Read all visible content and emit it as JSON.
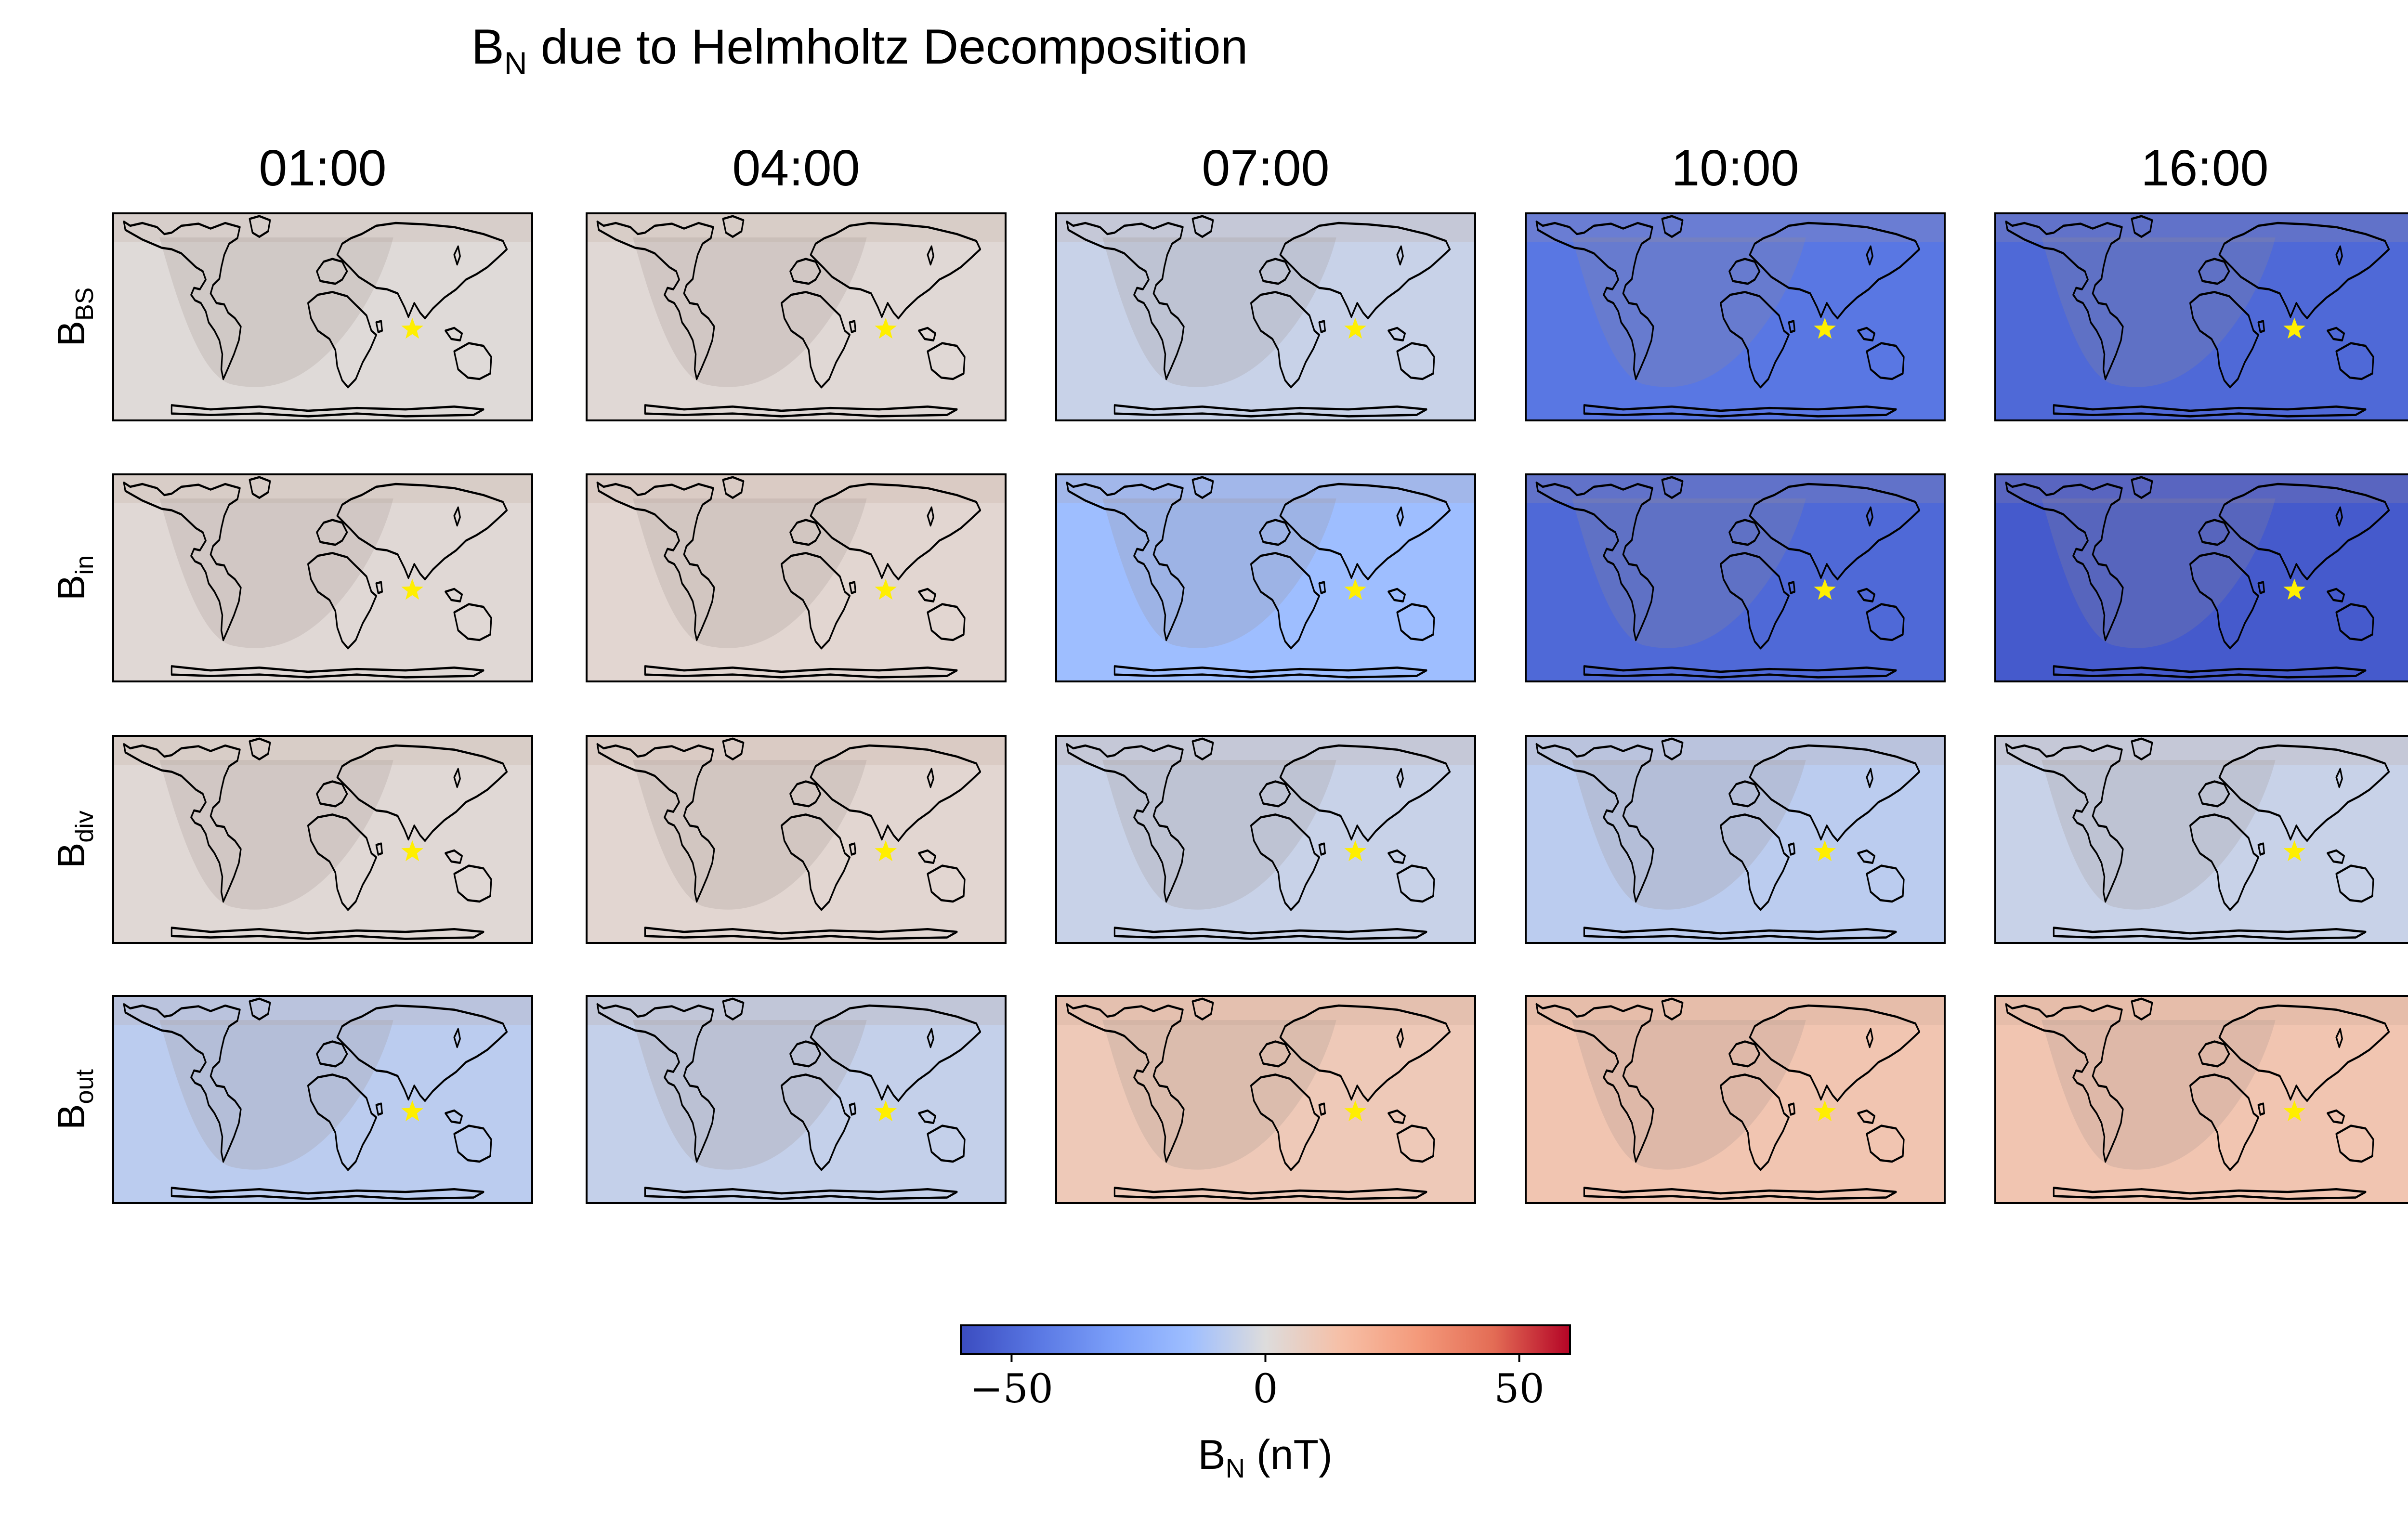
{
  "chart_data": {
    "type": "heatmap",
    "title": "B",
    "title_sub": "N",
    "title_rest": " due to Helmholtz Decomposition",
    "columns": [
      "01:00",
      "04:00",
      "07:00",
      "10:00",
      "16:00"
    ],
    "rows": [
      {
        "label": "B",
        "sub": "BS"
      },
      {
        "label": "B",
        "sub": "in"
      },
      {
        "label": "B",
        "sub": "div"
      },
      {
        "label": "B",
        "sub": "out"
      }
    ],
    "approx_mean_values_nT": [
      [
        1,
        2,
        -5,
        -45,
        -50
      ],
      [
        2,
        3,
        -15,
        -50,
        -55
      ],
      [
        2,
        3,
        -5,
        -8,
        -5
      ],
      [
        -8,
        -6,
        10,
        12,
        12
      ]
    ],
    "colorbar": {
      "label": "B",
      "label_sub": "N",
      "label_rest": " (nT)",
      "range": [
        -60,
        60
      ],
      "ticks": [
        -50,
        0,
        50
      ],
      "tick_labels": [
        "−50",
        "0",
        "50"
      ],
      "colormap": "coolwarm"
    },
    "marker": {
      "symbol": "star",
      "color": "#ffef00"
    },
    "night_shading": true
  }
}
